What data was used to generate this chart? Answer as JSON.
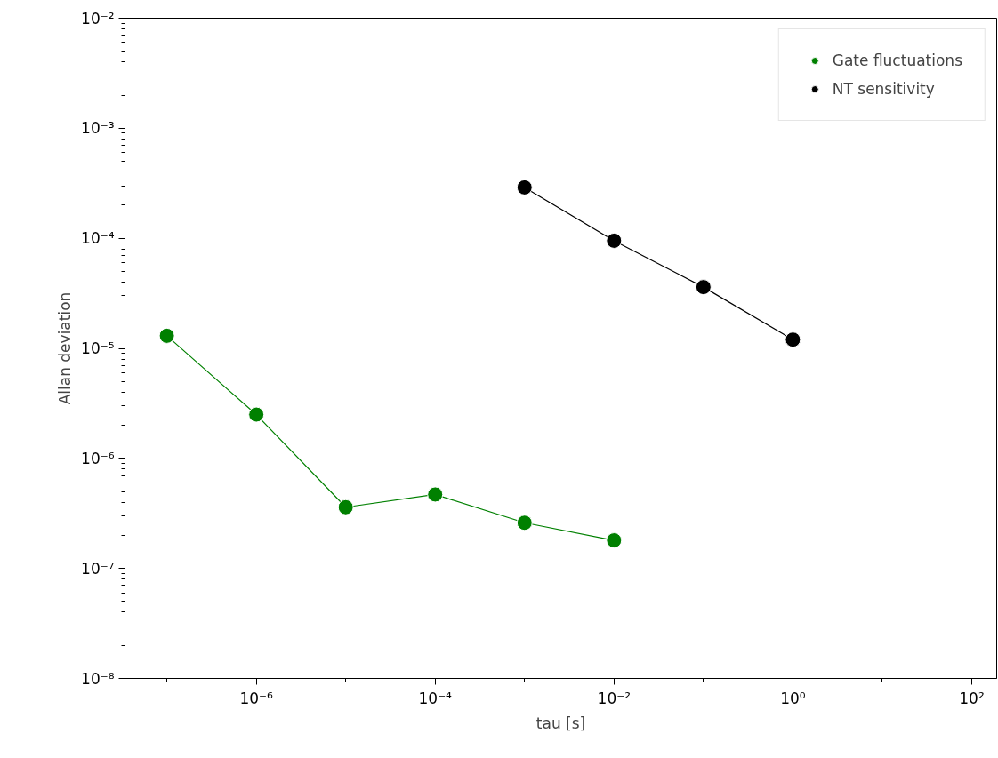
{
  "chart_data": {
    "type": "line",
    "xlabel": "tau [s]",
    "ylabel": "Allan deviation",
    "log": "xy",
    "xlim": [
      3.4e-08,
      190
    ],
    "ylim": [
      1e-08,
      0.01
    ],
    "xticks": [
      {
        "value": 1e-06,
        "label": "10⁻⁶"
      },
      {
        "value": 0.0001,
        "label": "10⁻⁴"
      },
      {
        "value": 0.01,
        "label": "10⁻²"
      },
      {
        "value": 1,
        "label": "10⁰"
      },
      {
        "value": 100,
        "label": "10²"
      }
    ],
    "yticks": [
      {
        "value": 1e-08,
        "label": "10⁻⁸"
      },
      {
        "value": 1e-07,
        "label": "10⁻⁷"
      },
      {
        "value": 1e-06,
        "label": "10⁻⁶"
      },
      {
        "value": 1e-05,
        "label": "10⁻⁵"
      },
      {
        "value": 0.0001,
        "label": "10⁻⁴"
      },
      {
        "value": 0.001,
        "label": "10⁻³"
      },
      {
        "value": 0.01,
        "label": "10⁻²"
      }
    ],
    "marker": "circle",
    "line_style": "solid",
    "grid": false,
    "legend": "top right",
    "series": [
      {
        "name": "Gate fluctuations",
        "color": "#008000",
        "x": [
          1e-07,
          1e-06,
          1e-05,
          0.0001,
          0.001,
          0.01
        ],
        "values": [
          1.3e-05,
          2.5e-06,
          3.6e-07,
          4.7e-07,
          2.6e-07,
          1.8e-07
        ]
      },
      {
        "name": "NT sensitivity",
        "color": "#000000",
        "x": [
          0.001,
          0.01,
          0.1,
          1
        ],
        "values": [
          0.00029,
          9.5e-05,
          3.6e-05,
          1.2e-05
        ]
      }
    ]
  }
}
